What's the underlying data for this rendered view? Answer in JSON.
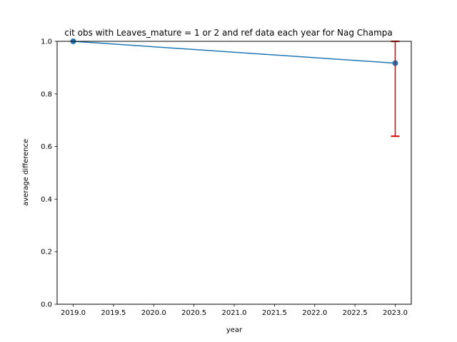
{
  "chart_data": {
    "type": "line",
    "title": "cit obs with Leaves_mature = 1 or 2 and ref data each year for Nag Champa",
    "xlabel": "year",
    "ylabel": "average difference",
    "xlim": [
      2018.8,
      2023.2
    ],
    "ylim": [
      0.0,
      1.0
    ],
    "xticks": [
      "2019.0",
      "2019.5",
      "2020.0",
      "2020.5",
      "2021.0",
      "2021.5",
      "2022.0",
      "2022.5",
      "2023.0"
    ],
    "yticks": [
      "0.0",
      "0.2",
      "0.4",
      "0.6",
      "0.8",
      "1.0"
    ],
    "grid": false,
    "series": [
      {
        "x": [
          2019,
          2023
        ],
        "y": [
          1.0,
          0.917
        ],
        "color": "#1f77b4",
        "marker": "circle"
      }
    ],
    "error_bars": [
      {
        "x": 2023,
        "low": 0.639,
        "high": 1.0,
        "color": "#e00000"
      }
    ]
  }
}
